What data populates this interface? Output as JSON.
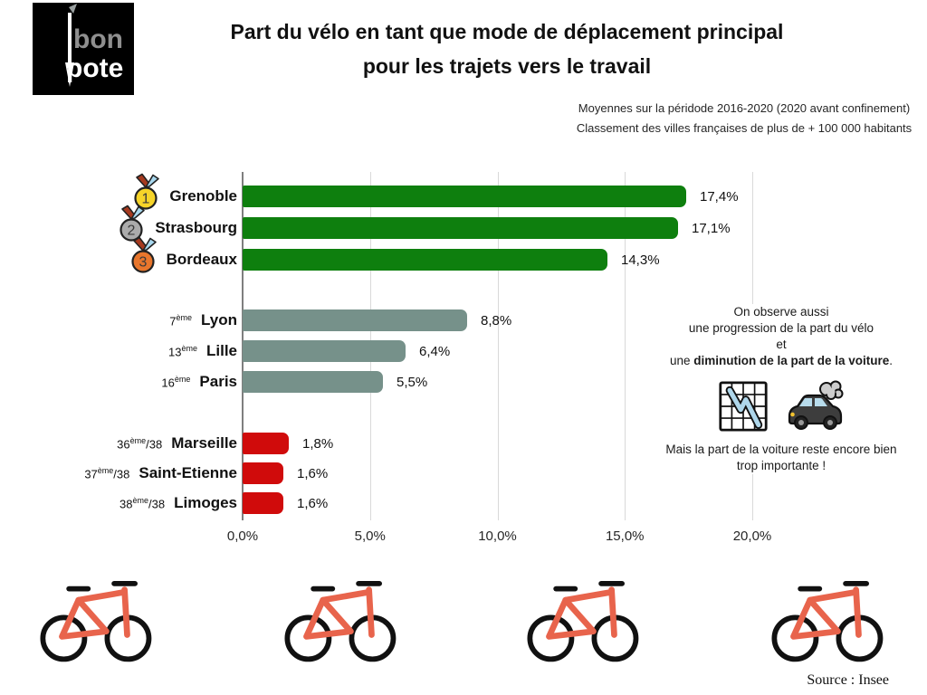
{
  "logo": {
    "word1": "bon",
    "word2": "pote"
  },
  "chart_data": {
    "type": "bar",
    "orientation": "horizontal",
    "title_line1": "Part du vélo en tant que mode de déplacement principal",
    "title_line2": "pour les trajets vers le travail",
    "subtitle_line1": "Moyennes sur la péridode 2016-2020 (2020 avant confinement)",
    "subtitle_line2": "Classement des villes françaises de plus de + 100 000 habitants",
    "xlim": [
      0,
      20
    ],
    "x_tick_values": [
      0,
      5,
      10,
      15,
      20
    ],
    "x_tick_labels": [
      "0,0%",
      "5,0%",
      "10,0%",
      "15,0%",
      "20,0%"
    ],
    "grid": true,
    "unit": "%",
    "group_colors": {
      "top": "#0e7f0e",
      "mid": "#76918a",
      "bottom": "#d00b0b"
    },
    "categories": [
      "Grenoble",
      "Strasbourg",
      "Bordeaux",
      "Lyon",
      "Lille",
      "Paris",
      "Marseille",
      "Saint-Etienne",
      "Limoges"
    ],
    "values": [
      17.4,
      17.1,
      14.3,
      8.8,
      6.4,
      5.5,
      1.8,
      1.6,
      1.6
    ],
    "rows": [
      {
        "city": "Grenoble",
        "medal": "gold",
        "medal_number": "1",
        "value": 17.4,
        "value_label": "17,4%",
        "group": "top"
      },
      {
        "city": "Strasbourg",
        "medal": "silver",
        "medal_number": "2",
        "value": 17.1,
        "value_label": "17,1%",
        "group": "top"
      },
      {
        "city": "Bordeaux",
        "medal": "bronze",
        "medal_number": "3",
        "value": 14.3,
        "value_label": "14,3%",
        "group": "top"
      },
      {
        "city": "Lyon",
        "rank_num": "7",
        "rank_sup": "ème",
        "rank_suffix": "",
        "value": 8.8,
        "value_label": "8,8%",
        "group": "mid"
      },
      {
        "city": "Lille",
        "rank_num": "13",
        "rank_sup": "ème",
        "rank_suffix": "",
        "value": 6.4,
        "value_label": "6,4%",
        "group": "mid"
      },
      {
        "city": "Paris",
        "rank_num": "16",
        "rank_sup": "ème",
        "rank_suffix": "",
        "value": 5.5,
        "value_label": "5,5%",
        "group": "mid"
      },
      {
        "city": "Marseille",
        "rank_num": "36",
        "rank_sup": "ème",
        "rank_suffix": "/38",
        "value": 1.8,
        "value_label": "1,8%",
        "group": "bottom"
      },
      {
        "city": "Saint-Etienne",
        "rank_num": "37",
        "rank_sup": "ème",
        "rank_suffix": "/38",
        "value": 1.6,
        "value_label": "1,6%",
        "group": "bottom"
      },
      {
        "city": "Limoges",
        "rank_num": "38",
        "rank_sup": "ème",
        "rank_suffix": "/38",
        "value": 1.6,
        "value_label": "1,6%",
        "group": "bottom"
      }
    ],
    "medal_colors": {
      "gold": "#f6d429",
      "silver": "#ababab",
      "bronze": "#e8762c"
    }
  },
  "annotation": {
    "line1": "On observe aussi",
    "line2": "une progression de la part du vélo",
    "line3": "et",
    "line4_prefix": "une ",
    "line4_bold": "diminution de la part de la voiture",
    "line4_suffix": ".",
    "line5": "Mais la part de la voiture reste encore bien",
    "line6": "trop importante !"
  },
  "footer": {
    "source": "Source : Insee"
  },
  "icons": {
    "bike_color": "#e8644c",
    "chart_decreasing": "chart-decreasing-icon",
    "car_smoke": "car-smoke-icon"
  }
}
